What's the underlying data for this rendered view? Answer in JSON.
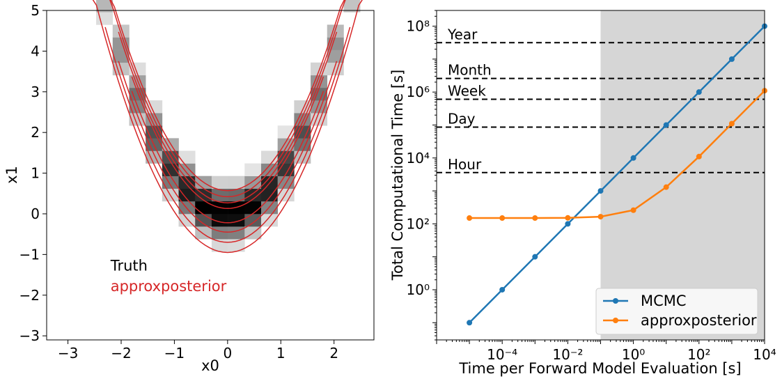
{
  "chart_data": [
    {
      "type": "heatmap",
      "xlabel": "x0",
      "ylabel": "x1",
      "xlim": [
        -3.4,
        2.75
      ],
      "ylim": [
        -3.1,
        5.0
      ],
      "xticks": [
        -3,
        -2,
        -1,
        0,
        1,
        2
      ],
      "yticks": [
        -3,
        -2,
        -1,
        0,
        1,
        2,
        3,
        4,
        5
      ],
      "xtick_labels": [
        "−3",
        "−2",
        "−1",
        "0",
        "1",
        "2"
      ],
      "ytick_labels": [
        "−3",
        "−2",
        "−1",
        "0",
        "1",
        "2",
        "3",
        "4",
        "5"
      ],
      "annotations": [
        {
          "text": "Truth",
          "x": -2.2,
          "y": -1.4,
          "color": "#000000"
        },
        {
          "text": "approxposterior",
          "x": -2.2,
          "y": -1.9,
          "color": "#d62728"
        }
      ],
      "histogram": {
        "description": "2D histogram of true posterior (banana-shaped Rosenbrock-like density)",
        "bin_width": 0.31,
        "colormap": "gray_r"
      },
      "contours": {
        "color": "#d62728",
        "levels": 4
      }
    },
    {
      "type": "line",
      "xlabel": "Time per Forward Model Evaluation [s]",
      "ylabel": "Total Computational Time [s]",
      "xscale": "log",
      "yscale": "log",
      "xlim": [
        1e-06,
        10000
      ],
      "ylim": [
        0.03,
        300000000
      ],
      "xtick_values": [
        0.0001,
        0.01,
        1,
        100,
        10000
      ],
      "xtick_labels": [
        "10⁻⁴",
        "10⁻²",
        "10⁰",
        "10²",
        "10⁴"
      ],
      "ytick_values": [
        1,
        100,
        10000,
        1000000,
        100000000
      ],
      "ytick_labels": [
        "10⁰",
        "10²",
        "10⁴",
        "10⁶",
        "10⁸"
      ],
      "shaded_region": {
        "x_from": 0.1,
        "x_to": 10000,
        "color": "#d6d6d6"
      },
      "hlines": [
        {
          "label": "Year",
          "y": 31536000
        },
        {
          "label": "Month",
          "y": 2592000
        },
        {
          "label": "Week",
          "y": 604800
        },
        {
          "label": "Day",
          "y": 86400
        },
        {
          "label": "Hour",
          "y": 3600
        }
      ],
      "x": [
        1e-05,
        0.0001,
        0.001,
        0.01,
        0.1,
        1,
        10,
        100,
        1000,
        10000
      ],
      "series": [
        {
          "name": "MCMC",
          "color": "#1f77b4",
          "values": [
            0.1,
            1,
            10,
            100,
            1000,
            10000,
            100000,
            1000000,
            10000000,
            100000000
          ]
        },
        {
          "name": "approxposterior",
          "color": "#ff7f0e",
          "values": [
            150,
            150,
            150,
            152,
            165,
            260,
            1300,
            11000,
            110000,
            1100000
          ]
        }
      ],
      "legend_position": "lower-right"
    }
  ]
}
